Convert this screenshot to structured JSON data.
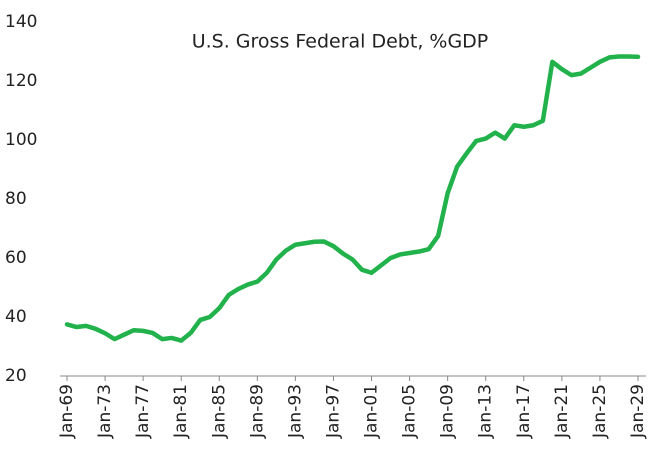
{
  "chart_data": {
    "type": "line",
    "title": "U.S. Gross Federal Debt, %GDP",
    "categories": [
      "Jan-69",
      null,
      null,
      null,
      "Jan-73",
      null,
      null,
      null,
      "Jan-77",
      null,
      null,
      null,
      "Jan-81",
      null,
      null,
      null,
      "Jan-85",
      null,
      null,
      null,
      "Jan-89",
      null,
      null,
      null,
      "Jan-93",
      null,
      null,
      null,
      "Jan-97",
      null,
      null,
      null,
      "Jan-01",
      null,
      null,
      null,
      "Jan-05",
      null,
      null,
      null,
      "Jan-09",
      null,
      null,
      null,
      "Jan-13",
      null,
      null,
      null,
      "Jan-17",
      null,
      null,
      null,
      "Jan-21",
      null,
      null,
      null,
      "Jan-25",
      null,
      null,
      null,
      "Jan-29"
    ],
    "series": [
      {
        "name": "U.S. Gross Federal Debt, %GDP",
        "color": "#22b24c",
        "values": [
          37.5,
          36.6,
          37,
          36,
          34.5,
          32.5,
          34,
          35.5,
          35.3,
          34.6,
          32.5,
          32.9,
          32,
          34.6,
          39,
          40,
          43,
          47.5,
          49.5,
          51,
          52,
          55,
          59.5,
          62.5,
          64.5,
          65,
          65.5,
          65.6,
          64,
          61.5,
          59.5,
          56,
          55,
          57.5,
          60,
          61.2,
          61.7,
          62.2,
          63,
          67.5,
          82,
          91,
          95.5,
          99.7,
          100.5,
          102.5,
          100.5,
          105,
          104.5,
          105,
          106.5,
          126.5,
          124,
          122,
          122.5,
          124.5,
          126.5,
          128,
          128.3,
          128.3,
          128.2
        ]
      }
    ],
    "ylim": [
      20,
      140
    ],
    "yticks": [
      20,
      40,
      60,
      80,
      100,
      120,
      140
    ],
    "grid": false
  }
}
